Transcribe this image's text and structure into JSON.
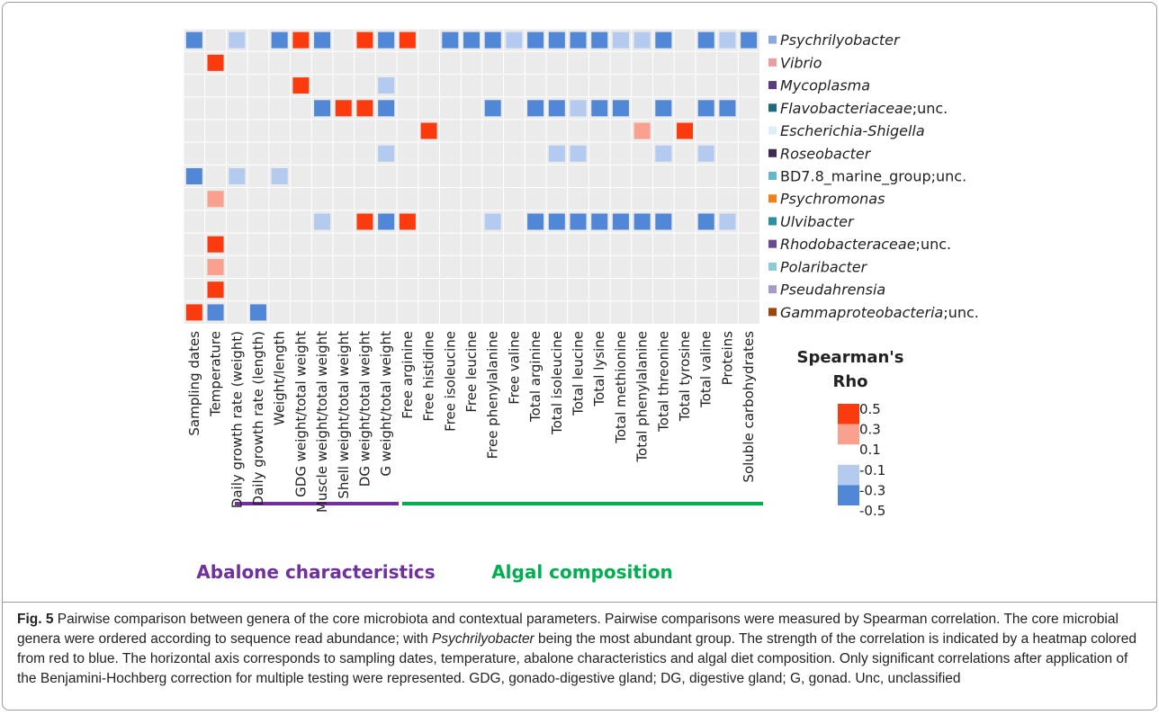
{
  "chart_data": {
    "type": "heatmap",
    "columns": [
      "Sampling dates",
      "Temperature",
      "Daily growth rate (weight)",
      "Daily growth rate (length)",
      "Weight/length",
      "GDG weight/total weight",
      "Muscle weight/total weight",
      "Shell weight/total weight",
      "DG weight/total weight",
      "G weight/total weight",
      "Free arginine",
      "Free histidine",
      "Free isoleucine",
      "Free leucine",
      "Free phenylalanine",
      "Free valine",
      "Total arginine",
      "Total isoleucine",
      "Total leucine",
      "Total lysine",
      "Total methionine",
      "Total phenylalanine",
      "Total threonine",
      "Total tyrosine",
      "Total valine",
      "Proteins",
      "Soluble carbohydrates"
    ],
    "rows": [
      [
        {
          "text": "Psychrilyobacter",
          "italic": true
        }
      ],
      [
        {
          "text": "Vibrio",
          "italic": true
        }
      ],
      [
        {
          "text": "Mycoplasma",
          "italic": true
        }
      ],
      [
        {
          "text": "Flavobacteriaceae",
          "italic": true
        },
        {
          "text": ";unc.",
          "italic": false
        }
      ],
      [
        {
          "text": "Escherichia-Shigella",
          "italic": true
        }
      ],
      [
        {
          "text": "Roseobacter",
          "italic": true
        }
      ],
      [
        {
          "text": "BD7.8_marine_group;unc.",
          "italic": false
        }
      ],
      [
        {
          "text": "Psychromonas",
          "italic": true
        }
      ],
      [
        {
          "text": "Ulvibacter",
          "italic": true
        }
      ],
      [
        {
          "text": "Rhodobacteraceae",
          "italic": true
        },
        {
          "text": ";unc.",
          "italic": false
        }
      ],
      [
        {
          "text": "Polaribacter",
          "italic": true
        }
      ],
      [
        {
          "text": "Pseudahrensia",
          "italic": true
        }
      ],
      [
        {
          "text": "Gammaproteobacteria",
          "italic": true
        },
        {
          "text": ";unc.",
          "italic": false
        }
      ]
    ],
    "row_colors": [
      "#8eaadb",
      "#e6a0a0",
      "#5b3c80",
      "#1f6b7a",
      "#ddeef7",
      "#3f2a54",
      "#62b6cf",
      "#f07f1e",
      "#2c8fa0",
      "#6a4a93",
      "#8ecbda",
      "#a79ac7",
      "#a0440f"
    ],
    "values": [
      [
        -0.4,
        null,
        -0.2,
        null,
        -0.4,
        0.4,
        -0.4,
        null,
        0.4,
        -0.4,
        0.4,
        null,
        -0.4,
        -0.4,
        -0.4,
        -0.2,
        -0.4,
        -0.4,
        -0.4,
        -0.4,
        -0.2,
        -0.2,
        -0.4,
        null,
        -0.4,
        -0.2,
        -0.4
      ],
      [
        null,
        0.4,
        null,
        null,
        null,
        null,
        null,
        null,
        null,
        null,
        null,
        null,
        null,
        null,
        null,
        null,
        null,
        null,
        null,
        null,
        null,
        null,
        null,
        null,
        null,
        null,
        null
      ],
      [
        null,
        null,
        null,
        null,
        null,
        0.4,
        null,
        null,
        null,
        -0.2,
        null,
        null,
        null,
        null,
        null,
        null,
        null,
        null,
        null,
        null,
        null,
        null,
        null,
        null,
        null,
        null,
        null
      ],
      [
        null,
        null,
        null,
        null,
        null,
        null,
        -0.4,
        0.4,
        0.4,
        -0.4,
        null,
        null,
        null,
        null,
        -0.4,
        null,
        -0.4,
        -0.4,
        -0.2,
        -0.4,
        -0.4,
        null,
        -0.4,
        null,
        -0.4,
        -0.4,
        null
      ],
      [
        null,
        null,
        null,
        null,
        null,
        null,
        null,
        null,
        null,
        null,
        null,
        0.4,
        null,
        null,
        null,
        null,
        null,
        null,
        null,
        null,
        null,
        0.2,
        null,
        0.4,
        null,
        null,
        null
      ],
      [
        null,
        null,
        null,
        null,
        null,
        null,
        null,
        null,
        null,
        -0.2,
        null,
        null,
        null,
        null,
        null,
        null,
        null,
        -0.2,
        -0.2,
        null,
        null,
        null,
        -0.2,
        null,
        -0.2,
        null,
        null
      ],
      [
        -0.4,
        null,
        -0.2,
        null,
        -0.2,
        null,
        null,
        null,
        null,
        null,
        null,
        null,
        null,
        null,
        null,
        null,
        null,
        null,
        null,
        null,
        null,
        null,
        null,
        null,
        null,
        null,
        null
      ],
      [
        null,
        0.2,
        null,
        null,
        null,
        null,
        null,
        null,
        null,
        null,
        null,
        null,
        null,
        null,
        null,
        null,
        null,
        null,
        null,
        null,
        null,
        null,
        null,
        null,
        null,
        null,
        null
      ],
      [
        null,
        null,
        null,
        null,
        null,
        null,
        -0.2,
        null,
        0.4,
        -0.4,
        0.4,
        null,
        null,
        null,
        -0.2,
        null,
        -0.4,
        -0.4,
        -0.4,
        -0.4,
        -0.4,
        -0.4,
        -0.4,
        null,
        -0.4,
        -0.2,
        null
      ],
      [
        null,
        0.4,
        null,
        null,
        null,
        null,
        null,
        null,
        null,
        null,
        null,
        null,
        null,
        null,
        null,
        null,
        null,
        null,
        null,
        null,
        null,
        null,
        null,
        null,
        null,
        null,
        null
      ],
      [
        null,
        0.2,
        null,
        null,
        null,
        null,
        null,
        null,
        null,
        null,
        null,
        null,
        null,
        null,
        null,
        null,
        null,
        null,
        null,
        null,
        null,
        null,
        null,
        null,
        null,
        null,
        null
      ],
      [
        null,
        0.4,
        null,
        null,
        null,
        null,
        null,
        null,
        null,
        null,
        null,
        null,
        null,
        null,
        null,
        null,
        null,
        null,
        null,
        null,
        null,
        null,
        null,
        null,
        null,
        null,
        null
      ],
      [
        0.4,
        -0.4,
        null,
        -0.4,
        null,
        null,
        null,
        null,
        null,
        null,
        null,
        null,
        null,
        null,
        null,
        null,
        null,
        null,
        null,
        null,
        null,
        null,
        null,
        null,
        null,
        null,
        null
      ]
    ],
    "legend": {
      "title": [
        "Spearman's",
        "Rho"
      ],
      "ticks": [
        0.5,
        0.3,
        0.1,
        -0.1,
        -0.3,
        -0.5
      ],
      "scale": [
        {
          "min": 0.3,
          "max": 0.5,
          "color": "#fb3a0e"
        },
        {
          "min": 0.1,
          "max": 0.3,
          "color": "#f9a08f"
        },
        {
          "min": -0.3,
          "max": -0.1,
          "color": "#b4cbef"
        },
        {
          "min": -0.5,
          "max": -0.3,
          "color": "#5087d6"
        }
      ]
    },
    "groups": [
      {
        "label": "Abalone characteristics",
        "color": "#7030a0"
      },
      {
        "label": "Algal composition",
        "color": "#00b050"
      }
    ]
  },
  "caption": [
    {
      "text": "Fig. 5",
      "bold": true
    },
    {
      "text": " Pairwise comparison between genera of the core microbiota and contextual parameters. Pairwise comparisons were measured by Spearman correlation. The core microbial genera were ordered according to sequence read abundance; with ",
      "italic": false
    },
    {
      "text": "Psychrilyobacter",
      "italic": true
    },
    {
      "text": " being the most abundant group. The strength of the correlation is indicated by a heatmap colored from red to blue. The horizontal axis corresponds to sampling dates, temperature, abalone characteristics and algal diet composition. Only significant correlations after application of the Benjamini-Hochberg correction for multiple testing were represented. GDG, gonado-digestive gland; DG, digestive gland; G, gonad. Unc, unclassified",
      "italic": false
    }
  ]
}
